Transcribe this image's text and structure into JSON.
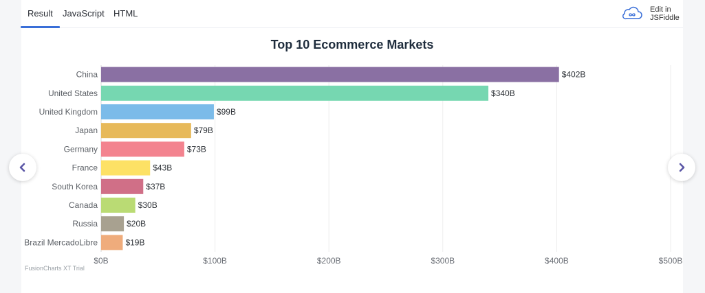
{
  "tabs": [
    {
      "label": "Result",
      "active": true
    },
    {
      "label": "JavaScript",
      "active": false
    },
    {
      "label": "HTML",
      "active": false
    }
  ],
  "edit_link": {
    "label": "Edit in JSFiddle",
    "icon": "cloud-infinity-icon"
  },
  "watermark": "FusionCharts XT Trial",
  "nav": {
    "prev_icon": "chevron-left-icon",
    "next_icon": "chevron-right-icon",
    "color": "#5b57a6"
  },
  "chart_data": {
    "type": "bar",
    "orientation": "horizontal",
    "title": "Top 10 Ecommerce Markets",
    "xlabel": "",
    "ylabel": "",
    "categories": [
      "China",
      "United States",
      "United Kingdom",
      "Japan",
      "Germany",
      "France",
      "South Korea",
      "Canada",
      "Russia",
      "Brazil MercadoLibre"
    ],
    "values": [
      402,
      340,
      99,
      79,
      73,
      43,
      37,
      30,
      20,
      19
    ],
    "value_labels": [
      "$402B",
      "$340B",
      "$99B",
      "$79B",
      "$73B",
      "$43B",
      "$37B",
      "$30B",
      "$20B",
      "$19B"
    ],
    "colors": [
      "#8a70a3",
      "#76d7b1",
      "#7bbbe9",
      "#e7b95a",
      "#f3838f",
      "#fde165",
      "#d06f87",
      "#badb74",
      "#a8a190",
      "#efac7c"
    ],
    "axis_ticks": [
      "$0B",
      "$100B",
      "$200B",
      "$300B",
      "$400B",
      "$500B"
    ],
    "xlim": [
      0,
      500
    ],
    "grid": true
  }
}
